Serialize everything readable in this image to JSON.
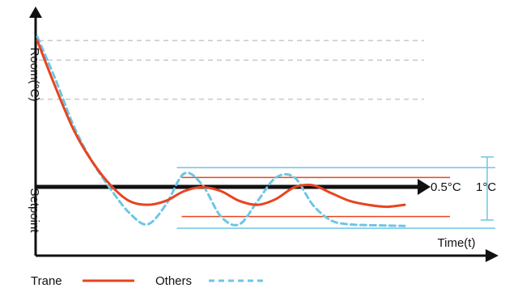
{
  "chart_data": {
    "type": "line",
    "ylabel": "Room(°C)",
    "xlabel": "Time(t)",
    "setpoint_label": "Setpoint",
    "band_labels": {
      "inner": "0.5°C",
      "outer": "1°C"
    },
    "legend": {
      "placement": "bottom-left",
      "items": [
        {
          "name": "Trane",
          "color": "#e8441f",
          "style": "solid"
        },
        {
          "name": "Others",
          "color": "#6ec6e4",
          "style": "dashed"
        }
      ]
    },
    "series": [
      {
        "name": "Trane",
        "color": "#e8441f",
        "x": [
          0,
          5,
          10,
          15,
          20,
          25,
          30,
          35,
          40,
          45,
          50,
          55,
          60,
          65,
          70,
          75,
          80,
          85,
          90,
          95,
          100
        ],
        "y": [
          4,
          2.8,
          1.7,
          0.9,
          0.3,
          -0.1,
          -0.2,
          -0.1,
          0.15,
          0.25,
          0.15,
          -0.1,
          -0.2,
          -0.05,
          0.25,
          0.3,
          0.1,
          -0.1,
          -0.2,
          -0.25,
          -0.2
        ]
      },
      {
        "name": "Others",
        "color": "#6ec6e4",
        "x": [
          0,
          5,
          10,
          15,
          20,
          25,
          30,
          35,
          40,
          45,
          50,
          55,
          60,
          65,
          70,
          75,
          80,
          85,
          90,
          95,
          100
        ],
        "y": [
          4.1,
          3.0,
          1.8,
          0.9,
          0.2,
          -0.4,
          -0.7,
          -0.2,
          0.6,
          0.3,
          -0.5,
          -0.7,
          -0.1,
          0.5,
          0.5,
          -0.2,
          -0.6,
          -0.7,
          -0.72,
          -0.73,
          -0.74
        ]
      }
    ],
    "setpoint": 0,
    "bands": [
      {
        "name": "0.5°C",
        "color": "#e8441f",
        "from": -0.5,
        "to": 0.5,
        "x_start": 38
      },
      {
        "name": "1°C",
        "color": "#6ec6e4",
        "from": -0.8,
        "to": 0.75,
        "x_start": 38
      }
    ],
    "gridlines_y": [
      2.5,
      3.5,
      4.0
    ],
    "xlim": [
      0,
      100
    ],
    "ylim": [
      -1.5,
      4.5
    ],
    "grid": "dashed horizontal, upper region"
  }
}
